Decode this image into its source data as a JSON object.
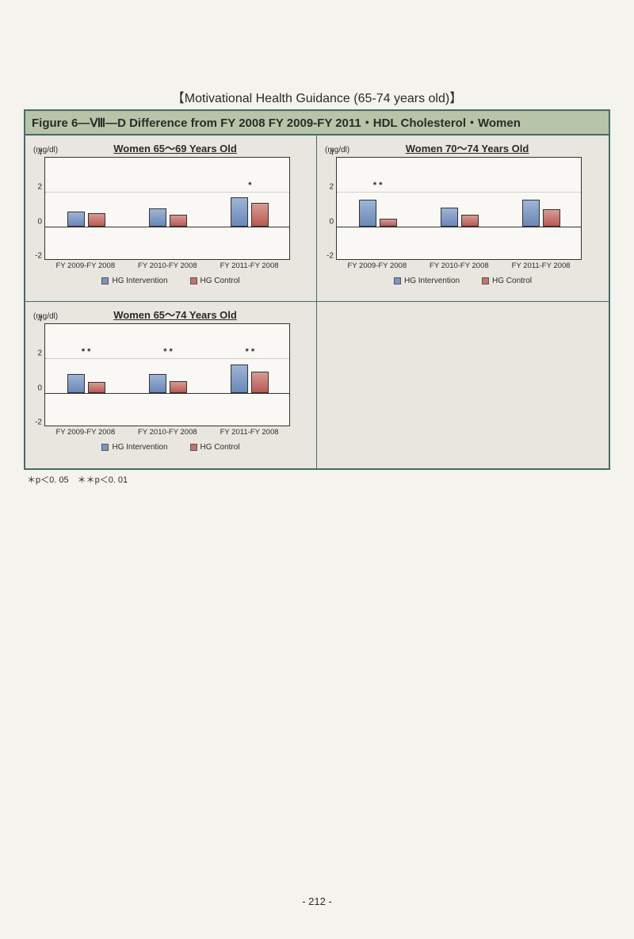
{
  "header": "【Motivational Health Guidance (65-74 years old)】",
  "figure_title": "Figure 6—Ⅷ—D  Difference  from FY  2008  FY  2009-FY  2011・HDL  Cholesterol・Women",
  "yaxis": {
    "min": -2,
    "max": 4,
    "ticks": [
      -2,
      0,
      2,
      4
    ]
  },
  "ref_line_at": 2,
  "unit_label": "(mg/dl)",
  "xcats": [
    "FY 2009-FY 2008",
    "FY 2010-FY 2008",
    "FY 2011-FY 2008"
  ],
  "legend": {
    "intervention": "HG Intervention",
    "control": "HG Control"
  },
  "colors": {
    "intervention": "#7a95c4",
    "control": "#c4746c",
    "border": "#333333",
    "grid": "#aaaaaa",
    "panel_bg": "#e8e6de",
    "plot_bg": "#f9f8f4",
    "frame": "#486a6a",
    "title_bg": "#b8c4a8"
  },
  "charts": [
    {
      "title": "Women 65～69 Years Old",
      "groups": [
        {
          "interv": 0.85,
          "control": 0.75,
          "sig": ""
        },
        {
          "interv": 1.05,
          "control": 0.7,
          "sig": ""
        },
        {
          "interv": 1.7,
          "control": 1.35,
          "sig": "*"
        }
      ]
    },
    {
      "title": "Women 70～74 Years Old",
      "groups": [
        {
          "interv": 1.55,
          "control": 0.45,
          "sig": "* *"
        },
        {
          "interv": 1.1,
          "control": 0.7,
          "sig": ""
        },
        {
          "interv": 1.55,
          "control": 1.0,
          "sig": ""
        }
      ]
    },
    {
      "title": "Women 65～74 Years Old",
      "groups": [
        {
          "interv": 1.1,
          "control": 0.65,
          "sig": "* *"
        },
        {
          "interv": 1.1,
          "control": 0.7,
          "sig": "* *"
        },
        {
          "interv": 1.65,
          "control": 1.25,
          "sig": "* *"
        }
      ]
    }
  ],
  "footnote": "＊p＜0. 05　＊＊p＜0. 01",
  "pagenum": "- 212 -"
}
